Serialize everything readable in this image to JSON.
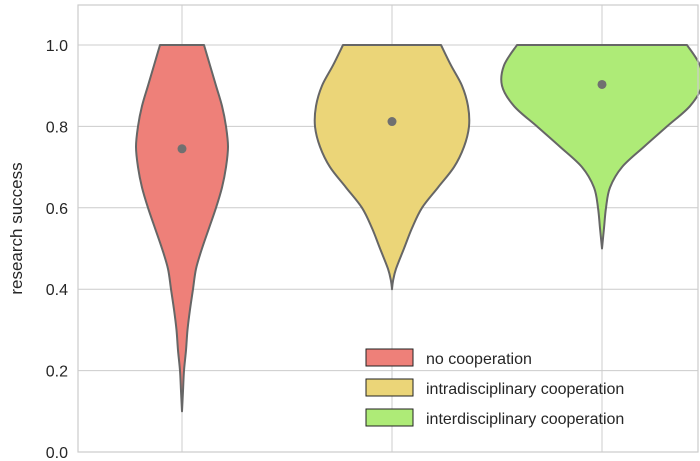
{
  "chart_data": {
    "type": "violin",
    "title": "",
    "xlabel": "",
    "ylabel": "research success",
    "ylim": [
      0.0,
      1.1
    ],
    "yticks": [
      0.0,
      0.2,
      0.4,
      0.6,
      0.8,
      1.0
    ],
    "ytick_labels": [
      "0.0",
      "0.2",
      "0.4",
      "0.6",
      "0.8",
      "1.0"
    ],
    "grid": true,
    "legend_position": "bottom-right",
    "outline_color": "#666666",
    "median_marker_color": "#707070",
    "series": [
      {
        "name": "no cooperation",
        "color": "#ee8079",
        "min": 0.1,
        "max": 1.0,
        "median": 0.745,
        "density": [
          [
            0.1,
            0.0
          ],
          [
            0.15,
            0.01
          ],
          [
            0.2,
            0.02
          ],
          [
            0.25,
            0.04
          ],
          [
            0.3,
            0.055
          ],
          [
            0.35,
            0.08
          ],
          [
            0.4,
            0.11
          ],
          [
            0.45,
            0.14
          ],
          [
            0.5,
            0.2
          ],
          [
            0.55,
            0.27
          ],
          [
            0.6,
            0.34
          ],
          [
            0.65,
            0.4
          ],
          [
            0.7,
            0.44
          ],
          [
            0.75,
            0.46
          ],
          [
            0.8,
            0.44
          ],
          [
            0.85,
            0.4
          ],
          [
            0.9,
            0.34
          ],
          [
            0.95,
            0.28
          ],
          [
            1.0,
            0.22
          ]
        ]
      },
      {
        "name": "intradisciplinary cooperation",
        "color": "#ebd578",
        "min": 0.4,
        "max": 1.0,
        "median": 0.812,
        "density": [
          [
            0.4,
            0.0
          ],
          [
            0.42,
            0.01
          ],
          [
            0.45,
            0.04
          ],
          [
            0.5,
            0.12
          ],
          [
            0.55,
            0.2
          ],
          [
            0.6,
            0.3
          ],
          [
            0.65,
            0.46
          ],
          [
            0.7,
            0.62
          ],
          [
            0.75,
            0.72
          ],
          [
            0.8,
            0.77
          ],
          [
            0.85,
            0.76
          ],
          [
            0.9,
            0.7
          ],
          [
            0.95,
            0.59
          ],
          [
            1.0,
            0.49
          ]
        ]
      },
      {
        "name": "interdisciplinary cooperation",
        "color": "#aeeb77",
        "min": 0.5,
        "max": 1.0,
        "median": 0.903,
        "density": [
          [
            0.5,
            0.0
          ],
          [
            0.55,
            0.02
          ],
          [
            0.6,
            0.04
          ],
          [
            0.65,
            0.08
          ],
          [
            0.7,
            0.2
          ],
          [
            0.75,
            0.42
          ],
          [
            0.8,
            0.65
          ],
          [
            0.85,
            0.88
          ],
          [
            0.9,
            1.0
          ],
          [
            0.95,
            0.98
          ],
          [
            1.0,
            0.85
          ]
        ]
      }
    ]
  }
}
